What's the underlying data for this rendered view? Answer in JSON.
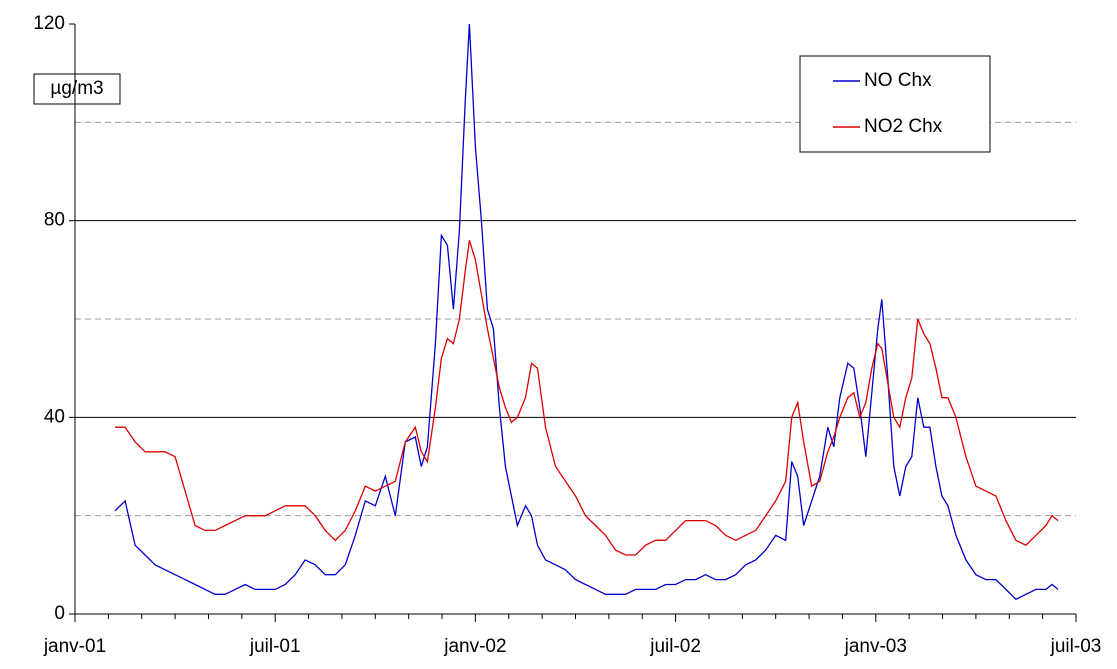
{
  "chart_data": {
    "type": "line",
    "y_label": "µg/m3",
    "x": [
      2001.1,
      2001.125,
      2001.15,
      2001.175,
      2001.2,
      2001.225,
      2001.25,
      2001.275,
      2001.3,
      2001.325,
      2001.35,
      2001.375,
      2001.4,
      2001.425,
      2001.45,
      2001.475,
      2001.5,
      2001.525,
      2001.55,
      2001.575,
      2001.6,
      2001.625,
      2001.65,
      2001.675,
      2001.7,
      2001.725,
      2001.75,
      2001.775,
      2001.8,
      2001.825,
      2001.85,
      2001.865,
      2001.88,
      2001.9,
      2001.915,
      2001.93,
      2001.945,
      2001.96,
      2001.975,
      2001.985,
      2002.0,
      2002.015,
      2002.03,
      2002.045,
      2002.06,
      2002.075,
      2002.09,
      2002.105,
      2002.125,
      2002.14,
      2002.155,
      2002.175,
      2002.2,
      2002.225,
      2002.25,
      2002.275,
      2002.3,
      2002.325,
      2002.35,
      2002.375,
      2002.4,
      2002.425,
      2002.45,
      2002.475,
      2002.5,
      2002.525,
      2002.55,
      2002.575,
      2002.6,
      2002.625,
      2002.65,
      2002.675,
      2002.7,
      2002.725,
      2002.75,
      2002.775,
      2002.79,
      2002.805,
      2002.82,
      2002.84,
      2002.86,
      2002.88,
      2002.895,
      2002.91,
      2002.93,
      2002.945,
      2002.96,
      2002.975,
      2002.99,
      2003.005,
      2003.015,
      2003.03,
      2003.045,
      2003.06,
      2003.075,
      2003.09,
      2003.105,
      2003.12,
      2003.135,
      2003.15,
      2003.165,
      2003.18,
      2003.2,
      2003.225,
      2003.25,
      2003.275,
      2003.3,
      2003.325,
      2003.35,
      2003.375,
      2003.4,
      2003.425,
      2003.44,
      2003.455
    ],
    "series": [
      {
        "name": "NO Chx",
        "color": "#0000cc",
        "values": [
          21,
          23,
          14,
          12,
          10,
          9,
          8,
          7,
          6,
          5,
          4,
          4,
          5,
          6,
          5,
          5,
          5,
          6,
          8,
          11,
          10,
          8,
          8,
          10,
          16,
          23,
          22,
          28,
          20,
          35,
          36,
          30,
          34,
          55,
          77,
          75,
          62,
          78,
          105,
          120,
          95,
          80,
          62,
          58,
          42,
          30,
          24,
          18,
          22,
          20,
          14,
          11,
          10,
          9,
          7,
          6,
          5,
          4,
          4,
          4,
          5,
          5,
          5,
          6,
          6,
          7,
          7,
          8,
          7,
          7,
          8,
          10,
          11,
          13,
          16,
          15,
          31,
          28,
          18,
          23,
          28,
          38,
          34,
          44,
          51,
          50,
          42,
          32,
          45,
          58,
          64,
          48,
          30,
          24,
          30,
          32,
          44,
          38,
          38,
          30,
          24,
          22,
          16,
          11,
          8,
          7,
          7,
          5,
          3,
          4,
          5,
          5,
          6,
          5
        ]
      },
      {
        "name": "NO2 Chx",
        "color": "#dd0000",
        "values": [
          38,
          38,
          35,
          33,
          33,
          33,
          32,
          25,
          18,
          17,
          17,
          18,
          19,
          20,
          20,
          20,
          21,
          22,
          22,
          22,
          20,
          17,
          15,
          17,
          21,
          26,
          25,
          26,
          27,
          35,
          38,
          33,
          31,
          42,
          52,
          56,
          55,
          60,
          70,
          76,
          72,
          65,
          58,
          52,
          46,
          42,
          39,
          40,
          44,
          51,
          50,
          38,
          30,
          27,
          24,
          20,
          18,
          16,
          13,
          12,
          12,
          14,
          15,
          15,
          17,
          19,
          19,
          19,
          18,
          16,
          15,
          16,
          17,
          20,
          23,
          27,
          40,
          43,
          35,
          26,
          27,
          33,
          36,
          40,
          44,
          45,
          40,
          43,
          50,
          55,
          54,
          47,
          40,
          38,
          44,
          48,
          60,
          57,
          55,
          50,
          44,
          44,
          40,
          32,
          26,
          25,
          24,
          19,
          15,
          14,
          16,
          18,
          20,
          19
        ]
      }
    ],
    "xlim": [
      2001,
      2003.5
    ],
    "xticks": [
      {
        "value": 2001,
        "label": "janv-01"
      },
      {
        "value": 2001.5,
        "label": "juil-01"
      },
      {
        "value": 2002,
        "label": "janv-02"
      },
      {
        "value": 2002.5,
        "label": "juil-02"
      },
      {
        "value": 2003,
        "label": "janv-03"
      },
      {
        "value": 2003.5,
        "label": "juil-03"
      }
    ],
    "ylim": [
      0,
      120
    ],
    "yticks": [
      0,
      40,
      80,
      120
    ],
    "yminor": [
      20,
      60,
      100
    ],
    "grid": true,
    "legend": "top-right"
  }
}
